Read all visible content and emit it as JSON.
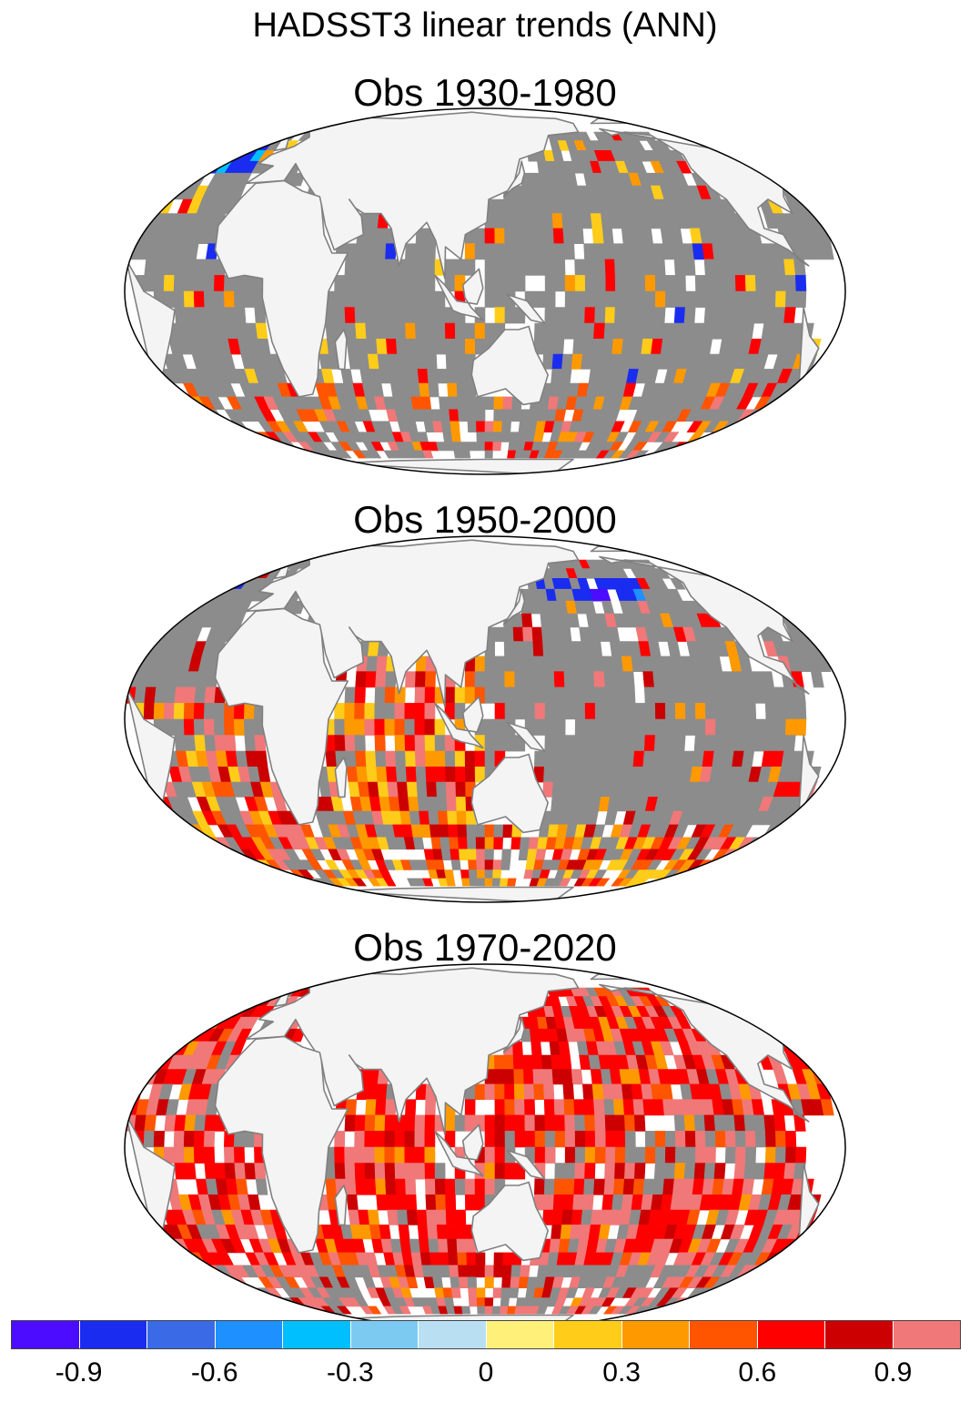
{
  "title": "HADSST3 linear trends (ANN)",
  "panels": [
    {
      "title": "Obs 1930-1980",
      "pattern": "mixed-cooling-north-atlantic"
    },
    {
      "title": "Obs 1950-2000",
      "pattern": "moderate-warming-indian-atlantic"
    },
    {
      "title": "Obs 1970-2020",
      "pattern": "widespread-strong-warming"
    }
  ],
  "map": {
    "projection": "robinson",
    "land_color": "#f4f4f4",
    "missing_color": "#ffffff",
    "near_zero_color": "#8c8c8c",
    "coastline_color": "#808080"
  },
  "colorbar": {
    "colors": [
      "#4b0cff",
      "#1a2cf0",
      "#3a6ae6",
      "#1e90ff",
      "#00bfff",
      "#7ccaf2",
      "#b9e0f2",
      "#fff07a",
      "#ffcc1a",
      "#ff9900",
      "#ff5500",
      "#ff0000",
      "#cc0000",
      "#f07878"
    ],
    "labels": [
      {
        "text": "-0.9",
        "boundary": 1
      },
      {
        "text": "-0.6",
        "boundary": 3
      },
      {
        "text": "-0.3",
        "boundary": 5
      },
      {
        "text": "0",
        "boundary": 7
      },
      {
        "text": "0.3",
        "boundary": 9
      },
      {
        "text": "0.6",
        "boundary": 11
      },
      {
        "text": "0.9",
        "boundary": 13
      }
    ]
  }
}
